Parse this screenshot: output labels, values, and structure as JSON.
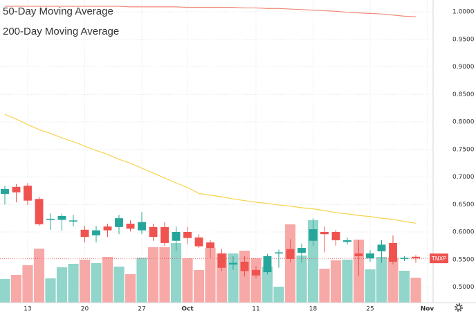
{
  "chart_data": {
    "type": "candlestick",
    "categories": [
      null,
      null,
      "13",
      null,
      null,
      null,
      null,
      "20",
      null,
      null,
      null,
      null,
      "27",
      null,
      null,
      null,
      "Oct",
      null,
      null,
      null,
      null,
      null,
      "11",
      null,
      null,
      null,
      null,
      "18",
      null,
      null,
      null,
      null,
      "25",
      null,
      null,
      null,
      null,
      "Nov"
    ],
    "open": [
      0.669,
      0.682,
      0.684,
      0.66,
      0.622,
      0.622,
      0.619,
      0.604,
      0.594,
      0.61,
      0.609,
      0.615,
      0.603,
      0.609,
      0.609,
      0.584,
      0.6,
      0.59,
      0.581,
      0.561,
      0.541,
      0.546,
      0.531,
      0.527,
      0.561,
      0.569,
      0.562,
      0.584,
      0.6,
      0.6,
      0.582,
      0.561,
      0.552,
      0.565,
      0.58,
      0.551,
      0.555,
      null
    ],
    "high": [
      0.684,
      0.687,
      0.689,
      0.664,
      0.634,
      0.633,
      0.631,
      0.611,
      0.611,
      0.615,
      0.631,
      0.621,
      0.636,
      0.615,
      0.618,
      0.61,
      0.609,
      0.596,
      0.585,
      0.569,
      0.556,
      0.556,
      0.538,
      0.56,
      0.568,
      0.587,
      0.579,
      0.625,
      0.61,
      0.604,
      0.59,
      0.585,
      0.567,
      0.585,
      0.594,
      0.556,
      0.558,
      null
    ],
    "low": [
      0.65,
      0.654,
      0.649,
      0.611,
      0.604,
      0.602,
      0.61,
      0.581,
      0.581,
      0.591,
      0.596,
      0.601,
      0.596,
      0.584,
      0.575,
      0.566,
      0.578,
      0.571,
      0.553,
      0.529,
      0.531,
      0.519,
      0.516,
      0.523,
      0.535,
      0.545,
      0.544,
      0.575,
      0.563,
      0.575,
      0.577,
      0.52,
      0.546,
      0.544,
      0.541,
      0.547,
      0.544,
      null
    ],
    "close": [
      0.678,
      0.672,
      0.657,
      0.614,
      0.624,
      0.629,
      0.621,
      0.591,
      0.603,
      0.603,
      0.625,
      0.606,
      0.618,
      0.591,
      0.58,
      0.6,
      0.589,
      0.574,
      0.571,
      0.535,
      0.544,
      0.529,
      0.521,
      0.556,
      0.563,
      0.551,
      0.571,
      0.605,
      0.596,
      0.585,
      0.585,
      0.556,
      0.561,
      0.577,
      0.546,
      0.553,
      0.552,
      null
    ],
    "volume": [
      34,
      40,
      54,
      78,
      35,
      51,
      56,
      62,
      57,
      66,
      52,
      41,
      65,
      80,
      80,
      86,
      64,
      47,
      79,
      71,
      71,
      75,
      64,
      52,
      23,
      113,
      68,
      119,
      49,
      61,
      62,
      91,
      48,
      66,
      65,
      46,
      36,
      null
    ],
    "series": [
      {
        "name": "50-Day Moving Average",
        "color": "#f7d24a",
        "values": [
          0.814,
          0.805,
          0.795,
          0.786,
          0.779,
          0.771,
          0.764,
          0.756,
          0.748,
          0.741,
          0.732,
          0.725,
          0.716,
          0.707,
          0.698,
          0.689,
          0.681,
          0.67,
          0.667,
          0.664,
          0.66,
          0.657,
          0.654,
          0.652,
          0.649,
          0.647,
          0.644,
          0.642,
          0.639,
          0.635,
          0.633,
          0.63,
          0.628,
          0.625,
          0.623,
          0.619,
          0.616,
          null
        ]
      },
      {
        "name": "200-Day Moving Average",
        "color": "#e53935",
        "line_color": "#f08a78",
        "values": [
          1.01,
          1.01,
          1.01,
          1.01,
          1.01,
          1.01,
          1.01,
          1.01,
          1.01,
          1.01,
          1.01,
          1.009,
          1.009,
          1.009,
          1.009,
          1.009,
          1.008,
          1.008,
          1.008,
          1.008,
          1.008,
          1.007,
          1.007,
          1.006,
          1.006,
          1.005,
          1.004,
          1.003,
          1.002,
          1.001,
          0.999,
          0.998,
          0.997,
          0.996,
          0.994,
          0.992,
          0.991,
          null
        ]
      }
    ],
    "ticker": "TNXP",
    "up_color": "#26a69a",
    "down_color": "#ef5350",
    "up_volume_color": "#92d5ca",
    "down_volume_color": "#f7a9a8",
    "ylim": [
      0.4717,
      1.0214
    ],
    "yticks": [
      {
        "value": 0.5,
        "label": "0.5000"
      },
      {
        "value": 0.55,
        "label": "0.5500"
      },
      {
        "value": 0.6,
        "label": "0.6000"
      },
      {
        "value": 0.65,
        "label": "0.6500"
      },
      {
        "value": 0.7,
        "label": "0.7000"
      },
      {
        "value": 0.75,
        "label": "0.7500"
      },
      {
        "value": 0.8,
        "label": "0.8000"
      },
      {
        "value": 0.85,
        "label": "0.8500"
      },
      {
        "value": 0.9,
        "label": "0.9000"
      },
      {
        "value": 0.95,
        "label": "0.9500"
      },
      {
        "value": 1.0,
        "label": "1.0000"
      }
    ],
    "y2lim": [
      0,
      437
    ],
    "grid": true
  }
}
